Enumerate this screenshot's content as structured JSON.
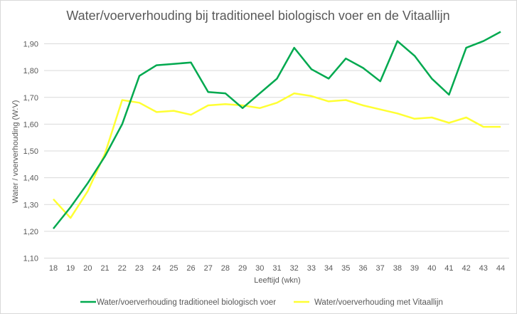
{
  "chart_data": {
    "type": "line",
    "title": "Water/voerverhouding bij traditioneel biologisch voer en de Vitaallijn",
    "xlabel": "Leeftijd (wkn)",
    "ylabel": "Water / voerverhouding (W:V)",
    "x": [
      "18",
      "19",
      "20",
      "21",
      "22",
      "23",
      "24",
      "25",
      "26",
      "27",
      "28",
      "29",
      "30",
      "31",
      "32",
      "33",
      "34",
      "35",
      "36",
      "37",
      "38",
      "39",
      "40",
      "41",
      "42",
      "43",
      "44"
    ],
    "ylim": [
      1.1,
      1.9
    ],
    "yticks": [
      "1,10",
      "1,20",
      "1,30",
      "1,40",
      "1,50",
      "1,60",
      "1,70",
      "1,80",
      "1,90"
    ],
    "ytick_values": [
      1.1,
      1.2,
      1.3,
      1.4,
      1.5,
      1.6,
      1.7,
      1.8,
      1.9
    ],
    "grid": true,
    "legend_position": "bottom",
    "series": [
      {
        "name": "Water/voerverhouding traditioneel biologisch voer",
        "color": "#00A94F",
        "values": [
          1.21,
          1.29,
          1.38,
          1.48,
          1.6,
          1.78,
          1.82,
          1.825,
          1.83,
          1.72,
          1.715,
          1.66,
          1.715,
          1.77,
          1.885,
          1.805,
          1.77,
          1.845,
          1.81,
          1.76,
          1.91,
          1.855,
          1.77,
          1.71,
          1.885,
          1.91,
          1.945
        ]
      },
      {
        "name": "Water/voerverhouding met Vitaallijn",
        "color": "#FFFF33",
        "values": [
          1.32,
          1.25,
          1.35,
          1.49,
          1.69,
          1.68,
          1.645,
          1.65,
          1.635,
          1.67,
          1.675,
          1.67,
          1.66,
          1.68,
          1.715,
          1.705,
          1.685,
          1.69,
          1.67,
          1.655,
          1.64,
          1.62,
          1.625,
          1.605,
          1.625,
          1.59,
          1.59
        ]
      }
    ]
  }
}
